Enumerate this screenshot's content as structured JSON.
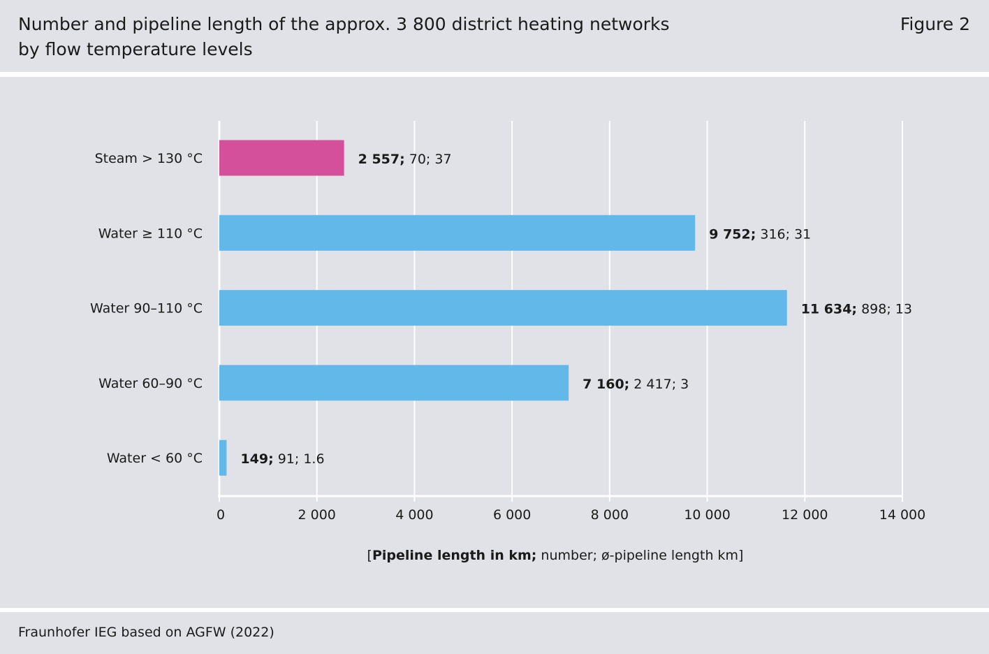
{
  "header": {
    "title": "Number and pipeline length of the approx. 3 800 district heating networks\nby flow temperature levels",
    "figure_label": "Figure 2"
  },
  "footer": {
    "source": "Fraunhofer IEG based on AGFW (2022)"
  },
  "colors": {
    "background": "#e1e2e7",
    "steam": "#d4509a",
    "water": "#62b8e8",
    "grid": "#ffffff"
  },
  "chart_data": {
    "type": "bar",
    "orientation": "horizontal",
    "categories": [
      "Steam > 130 °C",
      "Water ≥ 110 °C",
      "Water 90–110 °C",
      "Water 60–90 °C",
      "Water < 60 °C"
    ],
    "series": [
      {
        "values": [
          2557,
          9752,
          11634,
          7160,
          149
        ],
        "colors": [
          "#d4509a",
          "#62b8e8",
          "#62b8e8",
          "#62b8e8",
          "#62b8e8"
        ]
      }
    ],
    "data_labels": [
      {
        "bold": "2 557;",
        "rest": " 70; 37"
      },
      {
        "bold": "9 752;",
        "rest": " 316; 31"
      },
      {
        "bold": "11 634;",
        "rest": " 898; 13"
      },
      {
        "bold": "7 160;",
        "rest": " 2 417; 3"
      },
      {
        "bold": "149;",
        "rest": " 91; 1.6"
      }
    ],
    "network_counts": [
      70,
      316,
      898,
      2417,
      91
    ],
    "avg_pipeline_length_km": [
      37,
      31,
      13,
      3,
      1.6
    ],
    "xlim": [
      0,
      14000
    ],
    "xticks": [
      0,
      2000,
      4000,
      6000,
      8000,
      10000,
      12000,
      14000
    ],
    "xtick_labels": [
      "0",
      "2 000",
      "4 000",
      "6 000",
      "8 000",
      "10 000",
      "12 000",
      "14 000"
    ],
    "xlabel": {
      "open": "[",
      "bold": "Pipeline length in km;",
      "rest": " number; ø-pipeline length km]"
    },
    "grid": true
  }
}
